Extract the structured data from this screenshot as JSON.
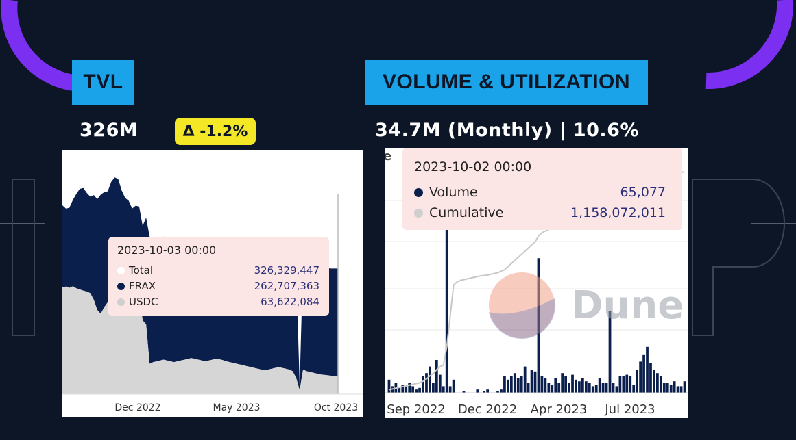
{
  "colors": {
    "background": "#0c1627",
    "accent_purple": "#7b2ff0",
    "header_blue": "#1aa3e8",
    "badge_yellow": "#f3e726",
    "frax_navy": "#0b1f4d",
    "usdc_gray": "#d6d6d6",
    "tooltip_bg": "#fce6e5"
  },
  "tvl": {
    "header": "TVL",
    "value": "326M",
    "delta": "Δ -1.2%"
  },
  "volume": {
    "header": "VOLUME & UTILIZATION",
    "stat": "34.7M (Monthly) | 10.6%",
    "partial_label": "e"
  },
  "watermark": {
    "text": "Dune"
  },
  "chart_data": [
    {
      "type": "area",
      "stacked": true,
      "title": "TVL",
      "x_ticks": [
        "Dec 2022",
        "May 2023",
        "Oct 2023"
      ],
      "series": [
        {
          "name": "USDC",
          "color": "#d6d6d6",
          "values": [
            260,
            262,
            259,
            263,
            258,
            255,
            252,
            250,
            246,
            230,
            205,
            196,
            212,
            224,
            232,
            238,
            244,
            246,
            238,
            226,
            222,
            244,
            252,
            180,
            170,
            74,
            78,
            80,
            82,
            84,
            82,
            80,
            78,
            80,
            82,
            84,
            86,
            88,
            86,
            84,
            82,
            80,
            82,
            84,
            86,
            85,
            83,
            80,
            78,
            76,
            74,
            72,
            70,
            68,
            66,
            64,
            62,
            60,
            58,
            60,
            62,
            64,
            66,
            64,
            62,
            60,
            56,
            40,
            10,
            60,
            56,
            54,
            52,
            50,
            48,
            47,
            46,
            45,
            44,
            44
          ]
        },
        {
          "name": "FRAX",
          "color": "#0b1f4d",
          "values": [
            200,
            190,
            195,
            210,
            230,
            245,
            250,
            240,
            235,
            255,
            270,
            290,
            280,
            270,
            285,
            290,
            280,
            250,
            240,
            245,
            230,
            215,
            205,
            230,
            260,
            310,
            300,
            290,
            295,
            300,
            285,
            280,
            275,
            285,
            290,
            295,
            280,
            275,
            270,
            265,
            268,
            270,
            272,
            268,
            266,
            270,
            268,
            266,
            262,
            264,
            268,
            270,
            266,
            262,
            260,
            258,
            256,
            254,
            256,
            260,
            266,
            270,
            272,
            274,
            276,
            278,
            278,
            270,
            10,
            270,
            272,
            268,
            264,
            262,
            262,
            262,
            261,
            261,
            262,
            262
          ]
        }
      ],
      "tooltip": {
        "date": "2023-10-03 00:00",
        "rows": [
          {
            "name": "Total",
            "value": "326,329,447",
            "color": "#ffffff"
          },
          {
            "name": "FRAX",
            "value": "262,707,363",
            "color": "#0b1f4d"
          },
          {
            "name": "USDC",
            "value": "63,622,084",
            "color": "#cfcfcf"
          }
        ]
      }
    },
    {
      "type": "bar",
      "title": "Volume & Utilization",
      "x_ticks": [
        "Sep 2022",
        "Dec 2022",
        "Apr 2023",
        "Jul 2023"
      ],
      "series": [
        {
          "name": "Volume",
          "color": "#0b1f4d",
          "values": [
            8,
            4,
            6,
            3,
            5,
            4,
            6,
            4,
            2,
            3,
            10,
            12,
            16,
            6,
            20,
            11,
            4,
            100,
            4,
            8,
            0,
            0,
            1,
            0,
            0,
            0,
            2,
            0,
            1,
            2,
            0,
            0,
            1,
            2,
            10,
            8,
            10,
            12,
            9,
            10,
            16,
            6,
            14,
            13,
            82,
            10,
            9,
            6,
            5,
            9,
            6,
            12,
            10,
            6,
            11,
            8,
            7,
            9,
            7,
            6,
            4,
            5,
            9,
            6,
            6,
            50,
            6,
            4,
            10,
            10,
            11,
            10,
            5,
            14,
            19,
            23,
            28,
            18,
            14,
            12,
            10,
            6,
            6,
            5,
            7,
            4,
            4,
            7
          ]
        },
        {
          "name": "Cumulative",
          "color": "#d6d6d6",
          "values": [
            2,
            2.5,
            3,
            3.5,
            4,
            4.5,
            5,
            5.5,
            6,
            6.5,
            7.5,
            9,
            11,
            12.5,
            15,
            17,
            18,
            30,
            50,
            70,
            72,
            73,
            73.5,
            74,
            74.5,
            75,
            75.5,
            76,
            76.2,
            76.5,
            77,
            77.5,
            78,
            79,
            80,
            82,
            84,
            86,
            88,
            90,
            92,
            94,
            96,
            98,
            102,
            104,
            105,
            106,
            107,
            108,
            109,
            110,
            111,
            112,
            113,
            114,
            115,
            116,
            117,
            118,
            119,
            120,
            121,
            122,
            123,
            125,
            126,
            127,
            128,
            129,
            130,
            131,
            132,
            133,
            134,
            135,
            136,
            137,
            138,
            139,
            140,
            140.5,
            141,
            141.5,
            142,
            142.5,
            143,
            143.5
          ]
        }
      ],
      "tooltip": {
        "date": "2023-10-02 00:00",
        "rows": [
          {
            "name": "Volume",
            "value": "65,077",
            "color": "#0b1f4d"
          },
          {
            "name": "Cumulative",
            "value": "1,158,072,011",
            "color": "#cfcfcf"
          }
        ]
      }
    }
  ]
}
